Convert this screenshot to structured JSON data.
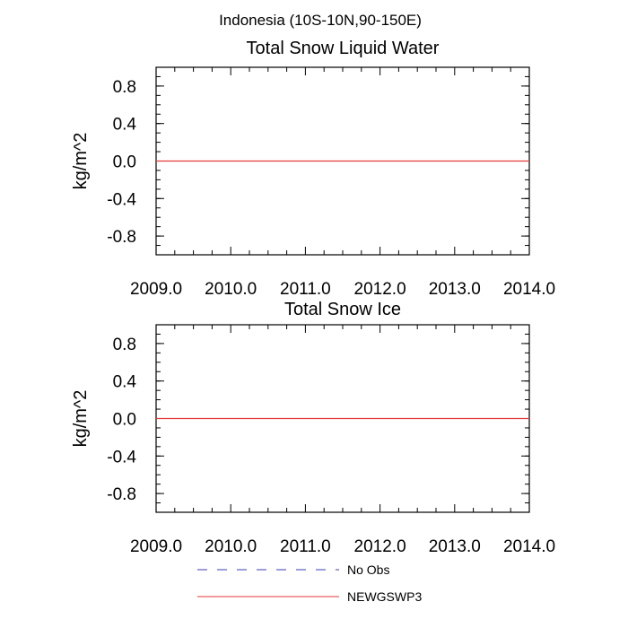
{
  "figure": {
    "suptitle": "Indonesia (10S-10N,90-150E)",
    "legend": {
      "placement": "bottom-center",
      "items": [
        {
          "label": "No Obs",
          "color": "#3b3bb3",
          "dash": "dashed"
        },
        {
          "label": "NEWGSWP3",
          "color": "#e23a3a",
          "dash": "solid"
        }
      ]
    }
  },
  "chart_data": [
    {
      "type": "line",
      "title": "Total Snow Liquid Water",
      "xlabel": "",
      "ylabel": "kg/m^2",
      "xlim": [
        2009.0,
        2014.0
      ],
      "ylim": [
        -1.0,
        1.0
      ],
      "xticks": [
        2009.0,
        2010.0,
        2011.0,
        2012.0,
        2013.0,
        2014.0
      ],
      "xtick_labels": [
        "2009.0",
        "2010.0",
        "2011.0",
        "2012.0",
        "2013.0",
        "2014.0"
      ],
      "yticks": [
        -0.8,
        -0.4,
        0.0,
        0.4,
        0.8
      ],
      "ytick_labels": [
        "-0.8",
        "-0.4",
        "0.0",
        "0.4",
        "0.8"
      ],
      "grid": false,
      "series": [
        {
          "name": "NEWGSWP3",
          "color": "#e23a3a",
          "dash": "solid",
          "x": [
            2009.0,
            2014.0
          ],
          "values": [
            0.0,
            0.0
          ]
        }
      ]
    },
    {
      "type": "line",
      "title": "Total Snow Ice",
      "xlabel": "",
      "ylabel": "kg/m^2",
      "xlim": [
        2009.0,
        2014.0
      ],
      "ylim": [
        -1.0,
        1.0
      ],
      "xticks": [
        2009.0,
        2010.0,
        2011.0,
        2012.0,
        2013.0,
        2014.0
      ],
      "xtick_labels": [
        "2009.0",
        "2010.0",
        "2011.0",
        "2012.0",
        "2013.0",
        "2014.0"
      ],
      "yticks": [
        -0.8,
        -0.4,
        0.0,
        0.4,
        0.8
      ],
      "ytick_labels": [
        "-0.8",
        "-0.4",
        "0.0",
        "0.4",
        "0.8"
      ],
      "grid": false,
      "series": [
        {
          "name": "NEWGSWP3",
          "color": "#e23a3a",
          "dash": "solid",
          "x": [
            2009.0,
            2014.0
          ],
          "values": [
            0.0,
            0.0
          ]
        }
      ]
    }
  ]
}
